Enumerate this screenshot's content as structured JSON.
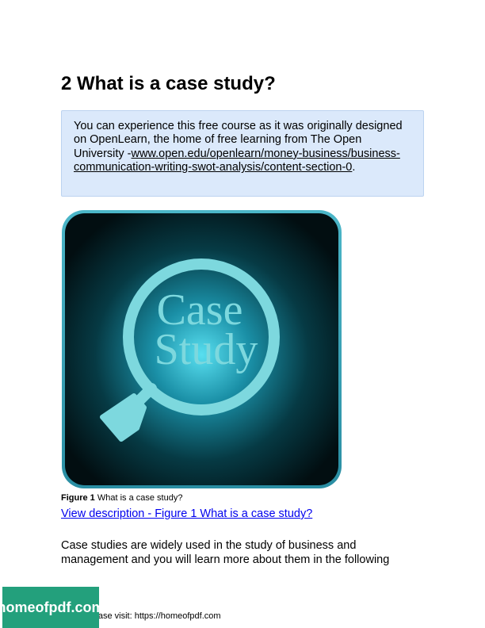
{
  "section": {
    "title": "2 What is a case study?"
  },
  "note": {
    "text_before": "You can experience this free course as it was originally designed on OpenLearn, the home of free learning from The Open University -",
    "link_text": "www.open.edu/openlearn/money-business/business-communication-writing-swot-analysis/content-section-0",
    "text_after": "."
  },
  "figure": {
    "image_text_line1": "Case",
    "image_text_line2": "Study",
    "caption_label": "Figure 1",
    "caption_text": " What is a case study?",
    "description_link": "View description - Figure 1 What is a case study?"
  },
  "body": {
    "paragraph": "Case studies are widely used in the study of business and management and you will learn more about them in the following"
  },
  "footer": {
    "badge_text": "homeofpdf.com",
    "visit_text": "e please visit: https://homeofpdf.com"
  },
  "colors": {
    "note_bg": "#dbe9fb",
    "magnifier": "#7dd8de",
    "badge_bg": "#23a07c",
    "link": "#0000ee"
  }
}
